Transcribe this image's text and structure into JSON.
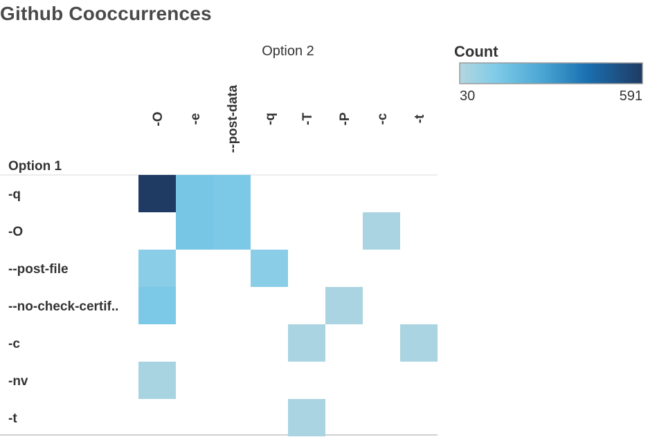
{
  "title": "Github Cooccurrences",
  "chart_data": {
    "type": "heatmap",
    "x_header": "Option 2",
    "y_header": "Option 1",
    "x_categories": [
      "-O",
      "-e",
      "--post-data",
      "-q",
      "-T",
      "-P",
      "-c",
      "-t"
    ],
    "y_categories": [
      "-q",
      "-O",
      "--post-file",
      "--no-check-certif..",
      "-c",
      "-nv",
      "-t"
    ],
    "cells": [
      {
        "y": "-q",
        "x": "-O",
        "value": 591
      },
      {
        "y": "-q",
        "x": "-e",
        "value": 160
      },
      {
        "y": "-q",
        "x": "--post-data",
        "value": 150
      },
      {
        "y": "-O",
        "x": "-e",
        "value": 160
      },
      {
        "y": "-O",
        "x": "--post-data",
        "value": 150
      },
      {
        "y": "-O",
        "x": "-c",
        "value": 50
      },
      {
        "y": "--post-file",
        "x": "-O",
        "value": 120
      },
      {
        "y": "--post-file",
        "x": "-q",
        "value": 120
      },
      {
        "y": "--no-check-certif..",
        "x": "-O",
        "value": 150
      },
      {
        "y": "--no-check-certif..",
        "x": "-P",
        "value": 50
      },
      {
        "y": "-c",
        "x": "-T",
        "value": 50
      },
      {
        "y": "-c",
        "x": "-t",
        "value": 50
      },
      {
        "y": "-nv",
        "x": "-O",
        "value": 55
      },
      {
        "y": "-t",
        "x": "-T",
        "value": 50
      }
    ],
    "legend": {
      "title": "Count",
      "min": 30,
      "max": 591,
      "min_label": "30",
      "max_label": "591",
      "colors": [
        "#b4d6df",
        "#7ecbe8",
        "#4ba6d3",
        "#1a6faf",
        "#1f3a63"
      ]
    }
  }
}
